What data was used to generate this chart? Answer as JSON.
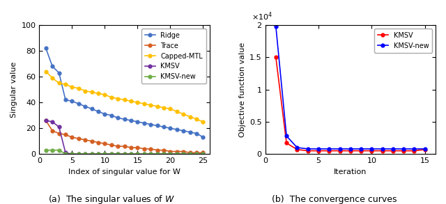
{
  "left": {
    "ridge": [
      82,
      68,
      63,
      42,
      41,
      39,
      37,
      35,
      33,
      31,
      30,
      28,
      27,
      26,
      25,
      24,
      23,
      22,
      21,
      20,
      19,
      18,
      17,
      16,
      13
    ],
    "trace": [
      26,
      18,
      16,
      15,
      13,
      12,
      11,
      10,
      9,
      8,
      7,
      6,
      6,
      5,
      5,
      4,
      4,
      3,
      3,
      2,
      2,
      2,
      1,
      1,
      1
    ],
    "capped": [
      64,
      59,
      55,
      54,
      52,
      51,
      49,
      48,
      47,
      46,
      44,
      43,
      42,
      41,
      40,
      39,
      38,
      37,
      36,
      35,
      33,
      31,
      29,
      27,
      25
    ],
    "kmsv": [
      26,
      25,
      21,
      1,
      0,
      0,
      0,
      0,
      0,
      0,
      0,
      0,
      0,
      0,
      0,
      0,
      0,
      0,
      0,
      0,
      0,
      0,
      0,
      0,
      0
    ],
    "kmsv_new": [
      3,
      3,
      3,
      0,
      0,
      0,
      0,
      0,
      0,
      0,
      0,
      0,
      0,
      0,
      0,
      0,
      0,
      0,
      0,
      0,
      0,
      0,
      0,
      0,
      0
    ],
    "x": [
      1,
      2,
      3,
      4,
      5,
      6,
      7,
      8,
      9,
      10,
      11,
      12,
      13,
      14,
      15,
      16,
      17,
      18,
      19,
      20,
      21,
      22,
      23,
      24,
      25
    ],
    "xlabel": "Index of singular value for W",
    "ylabel": "Singular value",
    "ylim": [
      0,
      100
    ],
    "xlim": [
      0,
      26
    ],
    "xticks": [
      0,
      5,
      10,
      15,
      20,
      25
    ],
    "yticks": [
      0,
      20,
      40,
      60,
      80,
      100
    ],
    "title": "(a)  The singular values of $W$",
    "colors": {
      "ridge": "#4472c4",
      "trace": "#d45f21",
      "capped": "#ffc000",
      "kmsv": "#7030a0",
      "kmsv_new": "#70ad47"
    }
  },
  "right": {
    "kmsv": [
      15000,
      1700,
      700,
      500,
      500,
      500,
      500,
      500,
      500,
      500,
      500,
      500,
      500,
      500,
      700
    ],
    "kmsv_new": [
      19800,
      2800,
      1000,
      800,
      800,
      800,
      800,
      800,
      800,
      800,
      800,
      800,
      800,
      800,
      800
    ],
    "x": [
      1,
      2,
      3,
      4,
      5,
      6,
      7,
      8,
      9,
      10,
      11,
      12,
      13,
      14,
      15
    ],
    "xlabel": "Iteration",
    "ylabel": "Objective function value",
    "ylim": [
      0,
      20000
    ],
    "xlim": [
      0,
      16
    ],
    "xticks": [
      0,
      5,
      10,
      15
    ],
    "yticks": [
      0,
      5000,
      10000,
      15000,
      20000
    ],
    "ytick_labels": [
      "0",
      "0.5",
      "1",
      "1.5",
      "2"
    ],
    "title": "(b)  The convergence curves",
    "colors": {
      "kmsv": "#ff0000",
      "kmsv_new": "#0000ff"
    }
  }
}
